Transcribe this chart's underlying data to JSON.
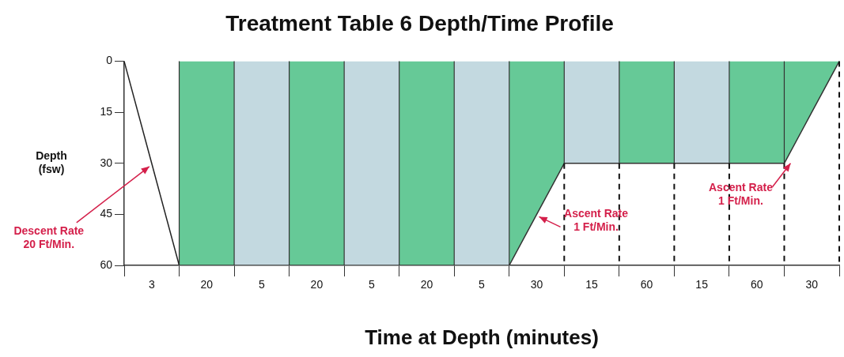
{
  "chart_data": {
    "type": "area",
    "title": "Treatment Table 6 Depth/Time Profile",
    "xlabel": "Time at Depth (minutes)",
    "ylabel": "Depth\n(fsw)",
    "categories": [
      null,
      "3",
      null,
      "20",
      null,
      "5",
      null,
      "20",
      null,
      "5",
      null,
      "20",
      null,
      "5",
      null,
      "30",
      null,
      "15",
      null,
      "60",
      null,
      "15",
      null,
      "60",
      null,
      "30",
      null
    ],
    "series": [
      {
        "color": "#66c997",
        "values": [
          null,
          null,
          60,
          60,
          60,
          null,
          60,
          60,
          60,
          null,
          60,
          60,
          60,
          null,
          60,
          45,
          30,
          null,
          30,
          30,
          30,
          null,
          30,
          30,
          30,
          15,
          0
        ]
      },
      {
        "color": "#c3d9e0",
        "values": [
          null,
          null,
          null,
          null,
          60,
          60,
          60,
          null,
          60,
          60,
          60,
          null,
          60,
          60,
          60,
          null,
          30,
          30,
          30,
          null,
          30,
          30,
          30,
          null,
          null,
          null,
          null
        ]
      },
      {
        "type": "line",
        "color": "#222222",
        "values": [
          0,
          30,
          60,
          null,
          null,
          null,
          null,
          null,
          null,
          null,
          null,
          null,
          null,
          null,
          null,
          null,
          null,
          null,
          null,
          null,
          null,
          null,
          null,
          null,
          null,
          null,
          null
        ]
      }
    ],
    "annotations": [
      {
        "text": "Descent Rate\n20 Ft/Min.",
        "x": "3",
        "y": 30
      },
      {
        "text": "Ascent Rate\n1 Ft/Min.",
        "x": "30",
        "y": 45
      },
      {
        "text": "Ascent Rate\n1 Ft/Min.",
        "y": 30
      }
    ],
    "ylim": [
      60,
      0
    ],
    "yticks": [
      0,
      15,
      30,
      45,
      60
    ],
    "grid": "x",
    "marker": "none",
    "line_style": "solid"
  }
}
